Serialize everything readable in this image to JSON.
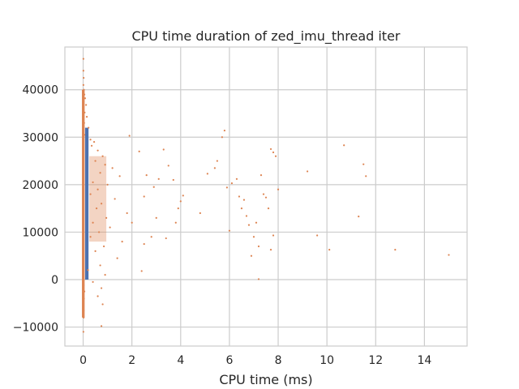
{
  "chart_data": {
    "type": "scatter",
    "title": "CPU time duration of zed_imu_thread iter",
    "xlabel": "CPU time (ms)",
    "ylabel": "",
    "xlim": [
      -0.75,
      15.75
    ],
    "ylim": [
      -14000,
      49000
    ],
    "xticks": [
      0,
      2,
      4,
      6,
      8,
      10,
      12,
      14
    ],
    "yticks": [
      -10000,
      0,
      10000,
      20000,
      30000,
      40000
    ],
    "grid": true,
    "legend": "none",
    "colors": {
      "bar": "#4c72b0",
      "scatter": "#dd8452",
      "grid": "#cccccc",
      "background": "#ffffff"
    },
    "bars": [
      {
        "x_start": 0.08,
        "x_end": 0.22,
        "y_start": 0,
        "y_end": 32000
      }
    ],
    "scatter_points": [
      [
        0.01,
        46500
      ],
      [
        0.01,
        44000
      ],
      [
        0.02,
        42500
      ],
      [
        0.01,
        41000
      ],
      [
        0.03,
        40000
      ],
      [
        0.05,
        39000
      ],
      [
        0.08,
        38200
      ],
      [
        0.02,
        37500
      ],
      [
        0.12,
        36800
      ],
      [
        0.06,
        35200
      ],
      [
        0.15,
        34300
      ],
      [
        0.04,
        33000
      ],
      [
        0.22,
        32000
      ],
      [
        0.05,
        30500
      ],
      [
        0.3,
        29500
      ],
      [
        0.45,
        29000
      ],
      [
        0.35,
        28200
      ],
      [
        0.6,
        27200
      ],
      [
        0.8,
        26000
      ],
      [
        0.5,
        25000
      ],
      [
        0.9,
        24200
      ],
      [
        1.2,
        23500
      ],
      [
        0.7,
        22500
      ],
      [
        1.5,
        21800
      ],
      [
        0.4,
        20500
      ],
      [
        1.0,
        20000
      ],
      [
        0.6,
        19000
      ],
      [
        0.3,
        18000
      ],
      [
        1.3,
        17000
      ],
      [
        0.75,
        16000
      ],
      [
        0.55,
        15000
      ],
      [
        1.8,
        14000
      ],
      [
        0.95,
        13000
      ],
      [
        0.4,
        12000
      ],
      [
        1.1,
        11000
      ],
      [
        0.65,
        10000
      ],
      [
        0.3,
        9000
      ],
      [
        1.6,
        8000
      ],
      [
        0.85,
        7000
      ],
      [
        0.5,
        6000
      ],
      [
        1.4,
        4500
      ],
      [
        0.7,
        3000
      ],
      [
        0.2,
        2000
      ],
      [
        0.9,
        1000
      ],
      [
        0.4,
        -500
      ],
      [
        0.75,
        -1800
      ],
      [
        0.6,
        -3500
      ],
      [
        0.8,
        -5200
      ],
      [
        0.75,
        -9800
      ],
      [
        0.02,
        -8000
      ],
      [
        0.01,
        -11000
      ],
      [
        0.02,
        -6500
      ],
      [
        0.03,
        -4000
      ],
      [
        0.05,
        -2500
      ],
      [
        0.02,
        -1200
      ],
      [
        1.9,
        30300
      ],
      [
        2.3,
        27000
      ],
      [
        2.6,
        22000
      ],
      [
        2.5,
        17500
      ],
      [
        2.0,
        12000
      ],
      [
        2.8,
        9000
      ],
      [
        2.5,
        7500
      ],
      [
        2.4,
        1800
      ],
      [
        3.3,
        27400
      ],
      [
        3.1,
        21200
      ],
      [
        2.9,
        19500
      ],
      [
        3.5,
        24000
      ],
      [
        3.4,
        8700
      ],
      [
        3.0,
        13000
      ],
      [
        3.7,
        21000
      ],
      [
        4.0,
        16500
      ],
      [
        4.1,
        17700
      ],
      [
        3.9,
        15000
      ],
      [
        3.8,
        12000
      ],
      [
        4.8,
        14000
      ],
      [
        5.1,
        22300
      ],
      [
        5.4,
        23500
      ],
      [
        5.5,
        25000
      ],
      [
        5.7,
        30000
      ],
      [
        5.8,
        31400
      ],
      [
        5.9,
        19400
      ],
      [
        6.1,
        20300
      ],
      [
        6.0,
        10300
      ],
      [
        6.3,
        21200
      ],
      [
        6.4,
        17500
      ],
      [
        6.6,
        16800
      ],
      [
        6.5,
        15000
      ],
      [
        6.7,
        13400
      ],
      [
        6.8,
        11500
      ],
      [
        6.9,
        5000
      ],
      [
        7.0,
        9000
      ],
      [
        7.2,
        7000
      ],
      [
        7.1,
        12000
      ],
      [
        7.3,
        22000
      ],
      [
        7.4,
        18000
      ],
      [
        7.5,
        17300
      ],
      [
        7.6,
        15000
      ],
      [
        7.7,
        27500
      ],
      [
        7.8,
        26800
      ],
      [
        7.9,
        26000
      ],
      [
        8.0,
        19000
      ],
      [
        7.8,
        9300
      ],
      [
        7.7,
        6300
      ],
      [
        7.2,
        100
      ],
      [
        9.2,
        22800
      ],
      [
        9.6,
        9300
      ],
      [
        10.1,
        6300
      ],
      [
        10.7,
        28300
      ],
      [
        11.3,
        13300
      ],
      [
        11.5,
        24300
      ],
      [
        11.6,
        21800
      ],
      [
        12.8,
        6300
      ],
      [
        15.0,
        5200
      ]
    ]
  }
}
